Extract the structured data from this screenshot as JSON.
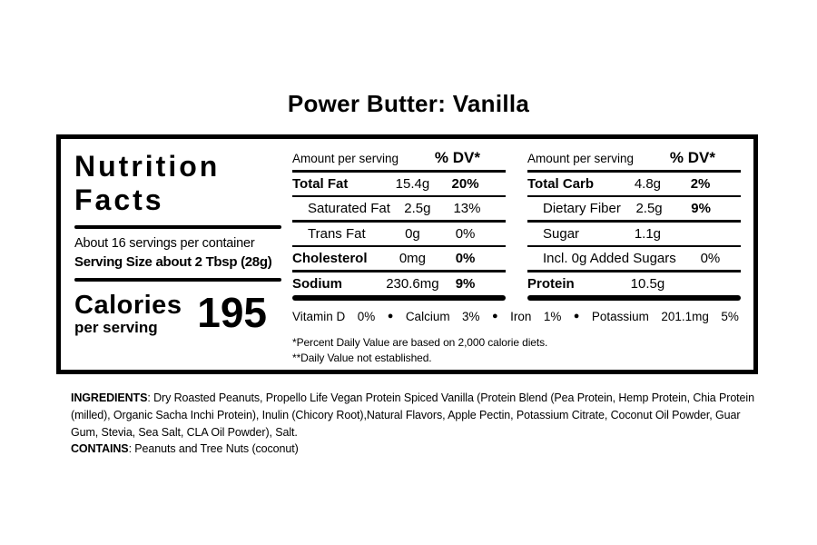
{
  "title": "Power Butter: Vanilla",
  "label": {
    "heading_line1": "Nutrition",
    "heading_line2": "Facts",
    "servings_text": "About 16 servings per container",
    "serving_size_text": "Serving Size about 2 Tbsp (28g)",
    "calories_label": "Calories",
    "calories_sub": "per serving",
    "calories_value": "195",
    "col_header_amount": "Amount per serving",
    "col_header_dv": "% DV*",
    "bullet": "●",
    "columns": [
      {
        "rows": [
          {
            "name": "Total Fat",
            "amount": "15.4g",
            "dv": "20%"
          },
          {
            "name": "Saturated Fat",
            "amount": "2.5g",
            "dv": "13%"
          },
          {
            "name": "Trans Fat",
            "amount": "0g",
            "dv": "0%"
          },
          {
            "name": "Cholesterol",
            "amount": "0mg",
            "dv": "0%"
          },
          {
            "name": "Sodium",
            "amount": "230.6mg",
            "dv": "9%"
          }
        ]
      },
      {
        "rows": [
          {
            "name": "Total Carb",
            "amount": "4.8g",
            "dv": "2%"
          },
          {
            "name": "Dietary Fiber",
            "amount": "2.5g",
            "dv": "9%"
          },
          {
            "name": "Sugar",
            "amount": "1.1g",
            "dv": ""
          },
          {
            "name": "Incl. 0g Added Sugars",
            "amount": "",
            "dv": "0%"
          },
          {
            "name": "Protein",
            "amount": "10.5g",
            "dv": ""
          }
        ]
      }
    ],
    "micronutrients": [
      {
        "name": "Vitamin D",
        "amount": "",
        "dv": "0%"
      },
      {
        "name": "Calcium",
        "amount": "",
        "dv": "3%"
      },
      {
        "name": "Iron",
        "amount": "",
        "dv": "1%"
      },
      {
        "name": "Potassium",
        "amount": "201.1mg",
        "dv": "5%"
      }
    ],
    "footnote1": "*Percent Daily Value are based on 2,000 calorie diets.",
    "footnote2": "**Daily Value not established."
  },
  "ingredients": {
    "label": "INGREDIENTS",
    "text": ": Dry Roasted Peanuts, Propello Life Vegan Protein Spiced Vanilla (Protein Blend (Pea Protein, Hemp Protein, Chia Protein (milled), Organic Sacha Inchi Protein), Inulin (Chicory Root),Natural Flavors, Apple Pectin, Potassium Citrate, Coconut Oil Powder, Guar Gum, Stevia, Sea Salt, CLA Oil Powder), Salt.",
    "contains_label": "CONTAINS",
    "contains_text": ": Peanuts and Tree Nuts (coconut)"
  },
  "colors": {
    "text": "#000000",
    "background": "#ffffff"
  }
}
